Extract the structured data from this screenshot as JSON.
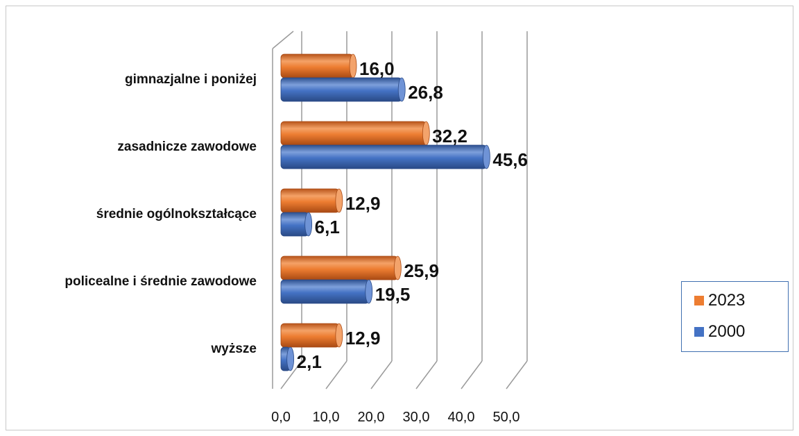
{
  "chart_data": {
    "type": "bar",
    "orientation": "horizontal",
    "categories": [
      "gimnazjalne i poniżej",
      "zasadnicze zawodowe",
      "średnie ogólnokształcące",
      "policealne i średnie zawodowe",
      "wyższe"
    ],
    "series": [
      {
        "name": "2023",
        "values": [
          16.0,
          32.2,
          12.9,
          25.9,
          12.9
        ],
        "color": "#ed7d31",
        "labels": [
          "16,0",
          "32,2",
          "12,9",
          "25,9",
          "12,9"
        ]
      },
      {
        "name": "2000",
        "values": [
          26.8,
          45.6,
          6.1,
          19.5,
          2.1
        ],
        "color": "#4472c4",
        "labels": [
          "26,8",
          "45,6",
          "6,1",
          "19,5",
          "2,1"
        ]
      }
    ],
    "x_ticks": [
      "0,0",
      "10,0",
      "20,0",
      "30,0",
      "40,0",
      "50,0"
    ],
    "xlim": [
      0,
      50
    ],
    "grid": true,
    "style": "3d-cylinder",
    "legend": {
      "position": "right",
      "entries": [
        "2023",
        "2000"
      ]
    }
  }
}
